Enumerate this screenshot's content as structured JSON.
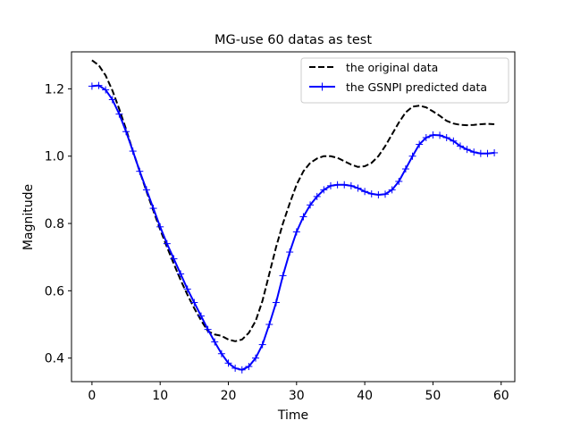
{
  "chart_data": {
    "type": "line",
    "title": "MG-use 60 datas as test",
    "xlabel": "Time",
    "ylabel": "Magnitude",
    "xlim": [
      -3,
      62
    ],
    "ylim": [
      0.33,
      1.31
    ],
    "xticks": [
      0,
      10,
      20,
      30,
      40,
      50,
      60
    ],
    "yticks": [
      0.4,
      0.6,
      0.8,
      1.0,
      1.2
    ],
    "xtick_labels": [
      "0",
      "10",
      "20",
      "30",
      "40",
      "50",
      "60"
    ],
    "ytick_labels": [
      "0.4",
      "0.6",
      "0.8",
      "1.0",
      "1.2"
    ],
    "grid": false,
    "legend_position": "top-right",
    "x": [
      0,
      1,
      2,
      3,
      4,
      5,
      6,
      7,
      8,
      9,
      10,
      11,
      12,
      13,
      14,
      15,
      16,
      17,
      18,
      19,
      20,
      21,
      22,
      23,
      24,
      25,
      26,
      27,
      28,
      29,
      30,
      31,
      32,
      33,
      34,
      35,
      36,
      37,
      38,
      39,
      40,
      41,
      42,
      43,
      44,
      45,
      46,
      47,
      48,
      49,
      50,
      51,
      52,
      53,
      54,
      55,
      56,
      57,
      58,
      59
    ],
    "series": [
      {
        "name": "the original data",
        "color": "#000000",
        "style": "dashed",
        "marker": "none",
        "values": [
          1.285,
          1.27,
          1.24,
          1.195,
          1.14,
          1.08,
          1.015,
          0.955,
          0.895,
          0.838,
          0.782,
          0.73,
          0.68,
          0.632,
          0.588,
          0.548,
          0.512,
          0.48,
          0.47,
          0.466,
          0.455,
          0.45,
          0.455,
          0.475,
          0.51,
          0.57,
          0.65,
          0.73,
          0.8,
          0.86,
          0.915,
          0.955,
          0.98,
          0.993,
          1.0,
          1.0,
          0.995,
          0.985,
          0.975,
          0.968,
          0.97,
          0.98,
          1.0,
          1.03,
          1.065,
          1.1,
          1.13,
          1.147,
          1.15,
          1.145,
          1.133,
          1.12,
          1.105,
          1.097,
          1.093,
          1.092,
          1.093,
          1.095,
          1.096,
          1.095
        ]
      },
      {
        "name": "the GSNPI predicted data",
        "color": "#0000ff",
        "style": "solid",
        "marker": "plus",
        "values": [
          1.208,
          1.21,
          1.197,
          1.168,
          1.125,
          1.073,
          1.015,
          0.955,
          0.9,
          0.845,
          0.79,
          0.74,
          0.695,
          0.65,
          0.605,
          0.565,
          0.525,
          0.485,
          0.448,
          0.413,
          0.385,
          0.37,
          0.365,
          0.375,
          0.4,
          0.44,
          0.5,
          0.565,
          0.645,
          0.715,
          0.775,
          0.82,
          0.855,
          0.88,
          0.9,
          0.912,
          0.915,
          0.915,
          0.912,
          0.905,
          0.895,
          0.888,
          0.885,
          0.887,
          0.9,
          0.925,
          0.962,
          1.0,
          1.035,
          1.055,
          1.063,
          1.062,
          1.055,
          1.045,
          1.03,
          1.02,
          1.012,
          1.008,
          1.008,
          1.01
        ]
      }
    ]
  }
}
